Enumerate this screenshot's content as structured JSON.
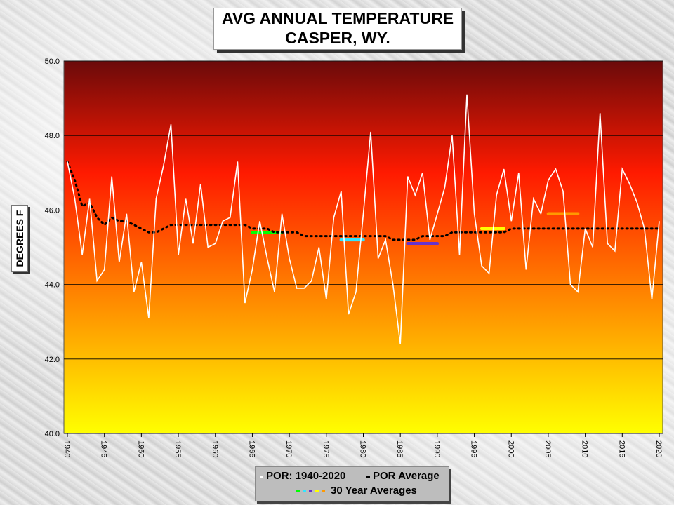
{
  "title": {
    "line1": "AVG ANNUAL  TEMPERATURE",
    "line2": "CASPER, WY."
  },
  "ylabel": "DEGREES F",
  "legend": {
    "por_label": "POR: 1940-2020",
    "por_avg_label": "POR Average",
    "thirty_year_label": "30 Year Averages"
  },
  "colors": {
    "annual_line": "#ffffff",
    "por_average": "#000000",
    "gradient_top": "#6b0a0a",
    "gradient_mid": "#ff1a00",
    "gradient_bottom": "#ffff00",
    "thirty_year": [
      "#00ff00",
      "#33e5ff",
      "#6633cc",
      "#ffff00",
      "#ff9900"
    ]
  },
  "chart_data": {
    "type": "line",
    "xlim": [
      1940,
      2020
    ],
    "ylim": [
      40.0,
      50.0
    ],
    "y_ticks": [
      "40.0",
      "42.0",
      "44.0",
      "46.0",
      "48.0",
      "50.0"
    ],
    "x_ticks": [
      "1940",
      "1945",
      "1950",
      "1955",
      "1960",
      "1965",
      "1970",
      "1975",
      "1980",
      "1985",
      "1990",
      "1995",
      "2000",
      "2005",
      "2010",
      "2015",
      "2020"
    ],
    "grid": "horizontal",
    "series": [
      {
        "name": "POR: 1940-2020",
        "x": [
          1940,
          1941,
          1942,
          1943,
          1944,
          1945,
          1946,
          1947,
          1948,
          1949,
          1950,
          1951,
          1952,
          1953,
          1954,
          1955,
          1956,
          1957,
          1958,
          1959,
          1960,
          1961,
          1962,
          1963,
          1964,
          1965,
          1966,
          1967,
          1968,
          1969,
          1970,
          1971,
          1972,
          1973,
          1974,
          1975,
          1976,
          1977,
          1978,
          1979,
          1980,
          1981,
          1982,
          1983,
          1984,
          1985,
          1986,
          1987,
          1988,
          1989,
          1990,
          1991,
          1992,
          1993,
          1994,
          1995,
          1996,
          1997,
          1998,
          1999,
          2000,
          2001,
          2002,
          2003,
          2004,
          2005,
          2006,
          2007,
          2008,
          2009,
          2010,
          2011,
          2012,
          2013,
          2014,
          2015,
          2016,
          2017,
          2018,
          2019,
          2020
        ],
        "values": [
          47.3,
          46.3,
          44.8,
          46.3,
          44.1,
          44.4,
          46.9,
          44.6,
          45.9,
          43.8,
          44.6,
          43.1,
          46.3,
          47.2,
          48.3,
          44.8,
          46.3,
          45.1,
          46.7,
          45.0,
          45.1,
          45.7,
          45.8,
          47.3,
          43.5,
          44.4,
          45.7,
          44.7,
          43.8,
          45.9,
          44.7,
          43.9,
          43.9,
          44.1,
          45.0,
          43.6,
          45.8,
          46.5,
          43.2,
          43.8,
          45.9,
          48.1,
          44.7,
          45.2,
          44.0,
          42.4,
          46.9,
          46.4,
          47.0,
          45.2,
          45.9,
          46.6,
          48.0,
          44.8,
          49.1,
          45.9,
          44.5,
          44.3,
          46.4,
          47.1,
          45.7,
          47.0,
          44.4,
          46.3,
          45.9,
          46.8,
          47.1,
          46.5,
          44.0,
          43.8,
          45.5,
          45.0,
          48.6,
          45.1,
          44.9,
          47.1,
          46.7,
          46.2,
          45.5,
          43.6,
          45.7
        ]
      },
      {
        "name": "POR Average",
        "x": [
          1940,
          1941,
          1942,
          1943,
          1944,
          1945,
          1946,
          1947,
          1948,
          1949,
          1950,
          1951,
          1952,
          1953,
          1954,
          1955,
          1956,
          1957,
          1958,
          1959,
          1960,
          1961,
          1962,
          1963,
          1964,
          1965,
          1966,
          1967,
          1968,
          1969,
          1970,
          1971,
          1972,
          1973,
          1974,
          1975,
          1976,
          1977,
          1978,
          1979,
          1980,
          1981,
          1982,
          1983,
          1984,
          1985,
          1986,
          1987,
          1988,
          1989,
          1990,
          1991,
          1992,
          1993,
          1994,
          1995,
          1996,
          1997,
          1998,
          1999,
          2000,
          2001,
          2002,
          2003,
          2004,
          2005,
          2006,
          2007,
          2008,
          2009,
          2010,
          2011,
          2012,
          2013,
          2014,
          2015,
          2016,
          2017,
          2018,
          2019,
          2020
        ],
        "values": [
          47.3,
          46.8,
          46.1,
          46.2,
          45.8,
          45.6,
          45.8,
          45.7,
          45.7,
          45.6,
          45.5,
          45.4,
          45.4,
          45.5,
          45.6,
          45.6,
          45.6,
          45.6,
          45.6,
          45.6,
          45.6,
          45.6,
          45.6,
          45.6,
          45.6,
          45.5,
          45.5,
          45.5,
          45.4,
          45.4,
          45.4,
          45.4,
          45.3,
          45.3,
          45.3,
          45.3,
          45.3,
          45.3,
          45.3,
          45.3,
          45.3,
          45.3,
          45.3,
          45.3,
          45.2,
          45.2,
          45.2,
          45.2,
          45.3,
          45.3,
          45.3,
          45.3,
          45.4,
          45.4,
          45.4,
          45.4,
          45.4,
          45.4,
          45.4,
          45.4,
          45.5,
          45.5,
          45.5,
          45.5,
          45.5,
          45.5,
          45.5,
          45.5,
          45.5,
          45.5,
          45.5,
          45.5,
          45.5,
          45.5,
          45.5,
          45.5,
          45.5,
          45.5,
          45.5,
          45.5,
          45.5
        ]
      }
    ],
    "thirty_year_averages": [
      {
        "x_start": 1965,
        "x_end": 1969,
        "value": 45.4
      },
      {
        "x_start": 1977,
        "x_end": 1980,
        "value": 45.2
      },
      {
        "x_start": 1986,
        "x_end": 1990,
        "value": 45.1
      },
      {
        "x_start": 1996,
        "x_end": 1999,
        "value": 45.5
      },
      {
        "x_start": 2005,
        "x_end": 2009,
        "value": 45.9
      }
    ]
  }
}
